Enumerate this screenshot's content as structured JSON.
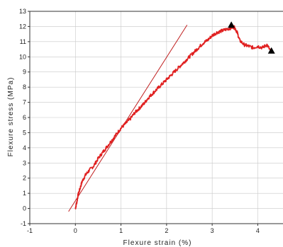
{
  "chart_data": {
    "type": "line",
    "xlabel": "Flexure strain (%)",
    "ylabel": "Flexure stress (MPa)",
    "xlim": [
      -1,
      4.6
    ],
    "ylim": [
      -1,
      13
    ],
    "x_ticks": [
      -1,
      0,
      1,
      2,
      3,
      4
    ],
    "y_ticks": [
      -1,
      0,
      1,
      2,
      3,
      4,
      5,
      6,
      7,
      8,
      9,
      10,
      11,
      12,
      13
    ],
    "grid": true,
    "series": [
      {
        "color": "#e02020",
        "x": [
          0,
          0.03,
          0.06,
          0.1,
          0.15,
          0.22,
          0.3,
          0.4,
          0.5,
          0.6,
          0.7,
          0.8,
          0.9,
          1.0,
          1.1,
          1.2,
          1.3,
          1.4,
          1.5,
          1.6,
          1.7,
          1.8,
          1.9,
          2.0,
          2.1,
          2.2,
          2.3,
          2.4,
          2.5,
          2.6,
          2.7,
          2.8,
          2.9,
          3.0,
          3.1,
          3.2,
          3.3,
          3.4,
          3.45,
          3.5,
          3.55,
          3.6,
          3.7,
          3.8,
          3.9,
          4.0,
          4.1,
          4.2,
          4.3
        ],
        "y": [
          0,
          0.4,
          0.9,
          1.3,
          1.8,
          2.2,
          2.5,
          2.8,
          3.3,
          3.7,
          4.1,
          4.5,
          4.9,
          5.3,
          5.6,
          5.9,
          6.3,
          6.6,
          6.9,
          7.3,
          7.6,
          7.9,
          8.2,
          8.5,
          8.8,
          9.1,
          9.4,
          9.7,
          10.0,
          10.3,
          10.6,
          10.9,
          11.1,
          11.4,
          11.6,
          11.7,
          11.8,
          11.9,
          12.0,
          11.9,
          11.6,
          11.1,
          10.8,
          10.7,
          10.6,
          10.7,
          10.6,
          10.8,
          10.3
        ]
      }
    ],
    "tangent_line": {
      "color": "#c02020",
      "x": [
        -0.15,
        2.45
      ],
      "y": [
        -0.2,
        12.1
      ]
    },
    "markers": [
      {
        "shape": "triangle",
        "color": "#000000",
        "x": 3.42,
        "y": 12.1
      },
      {
        "shape": "triangle",
        "color": "#000000",
        "x": 4.3,
        "y": 10.4
      }
    ]
  }
}
